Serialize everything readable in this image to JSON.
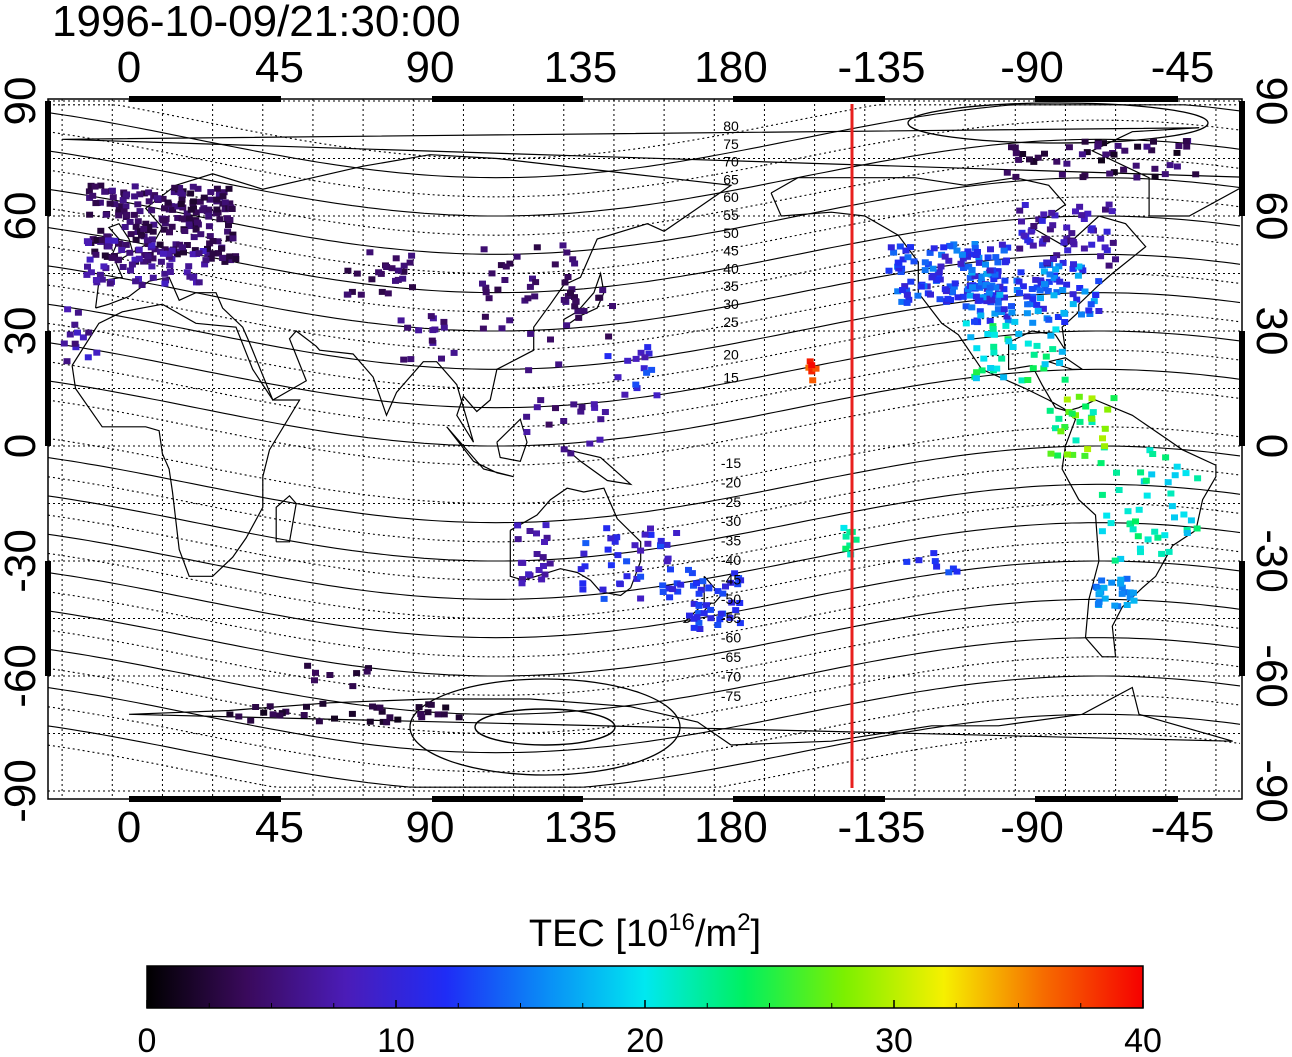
{
  "title": "1996-10-09/21:30:00",
  "map": {
    "lon_ticks": [
      "0",
      "45",
      "90",
      "135",
      "180",
      "-135",
      "-90",
      "-45"
    ],
    "lat_ticks": [
      "90",
      "60",
      "30",
      "0",
      "-30",
      "-60",
      "-90"
    ],
    "contour_labels": {
      "north": [
        "80",
        "75",
        "70",
        "65",
        "60",
        "55",
        "50",
        "45",
        "40",
        "35",
        "30",
        "25",
        "20",
        "15"
      ],
      "south": [
        "-15",
        "-20",
        "-25",
        "-30",
        "-35",
        "-40",
        "-45",
        "-50",
        "-55",
        "-60",
        "-65",
        "-70",
        "-75"
      ]
    },
    "terminator_color": "#e8201e"
  },
  "colorbar": {
    "label_main": "TEC  [10",
    "label_exp1": "16",
    "label_mid": "/m",
    "label_exp2": "2",
    "label_end": "]",
    "ticks": [
      "0",
      "10",
      "20",
      "30",
      "40"
    ],
    "range": [
      0,
      40
    ],
    "colors": [
      "#000000",
      "#3a0a5c",
      "#4b1cb8",
      "#1f2cf6",
      "#0a8cf6",
      "#00e8f0",
      "#00f060",
      "#7cf000",
      "#f6f000",
      "#f66c00",
      "#f60000"
    ]
  }
}
